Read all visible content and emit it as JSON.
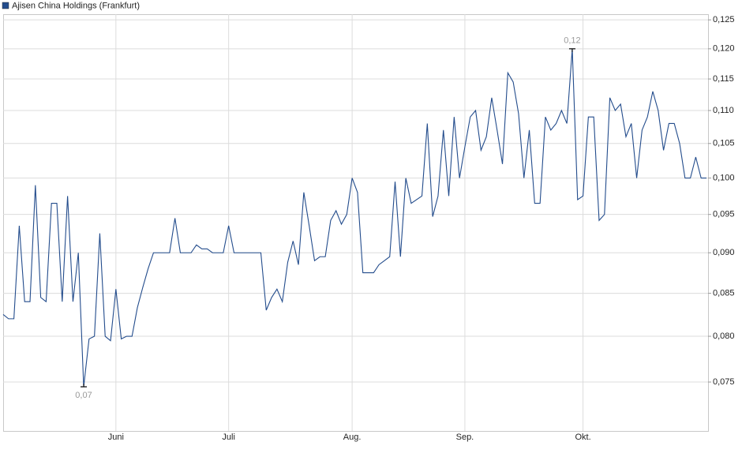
{
  "chart_data": {
    "type": "line",
    "log_scale": true,
    "grid": true,
    "categories": [
      null,
      null,
      null,
      null,
      null,
      null,
      null,
      null,
      null,
      null,
      null,
      null,
      null,
      null,
      null,
      null,
      null,
      null,
      null,
      null,
      null,
      "Juni",
      null,
      null,
      null,
      null,
      null,
      null,
      null,
      null,
      null,
      null,
      null,
      null,
      null,
      null,
      null,
      null,
      null,
      null,
      null,
      null,
      "Juli",
      null,
      null,
      null,
      null,
      null,
      null,
      null,
      null,
      null,
      null,
      null,
      null,
      null,
      null,
      null,
      null,
      null,
      null,
      null,
      null,
      null,
      null,
      "Aug.",
      null,
      null,
      null,
      null,
      null,
      null,
      null,
      null,
      null,
      null,
      null,
      null,
      null,
      null,
      null,
      null,
      null,
      null,
      null,
      null,
      "Sep.",
      null,
      null,
      null,
      null,
      null,
      null,
      null,
      null,
      null,
      null,
      null,
      null,
      null,
      null,
      null,
      null,
      null,
      null,
      null,
      null,
      null,
      "Okt.",
      null,
      null,
      null,
      null,
      null,
      null,
      null,
      null,
      null,
      null,
      null,
      null,
      null,
      null,
      null,
      null,
      null,
      null,
      null,
      null,
      null,
      null,
      null
    ],
    "series": [
      {
        "name": "Ajisen China Holdings (Frankfurt)",
        "color": "#234c8c",
        "values": [
          0.0825,
          0.082,
          0.082,
          0.0935,
          0.084,
          0.084,
          0.099,
          0.0845,
          0.084,
          0.0965,
          0.0965,
          0.084,
          0.0975,
          0.084,
          0.09,
          0.0745,
          0.0797,
          0.08,
          0.0925,
          0.08,
          0.0795,
          0.0855,
          0.0797,
          0.08,
          0.08,
          0.0833,
          0.0857,
          0.088,
          0.09,
          0.09,
          0.09,
          0.09,
          0.0945,
          0.09,
          0.09,
          0.09,
          0.091,
          0.0905,
          0.0905,
          0.09,
          0.09,
          0.09,
          0.0935,
          0.09,
          0.09,
          0.09,
          0.09,
          0.09,
          0.09,
          0.083,
          0.0845,
          0.0855,
          0.084,
          0.0888,
          0.0915,
          0.0885,
          0.098,
          0.0935,
          0.089,
          0.0895,
          0.0895,
          0.0942,
          0.0955,
          0.0937,
          0.095,
          0.1,
          0.098,
          0.0875,
          0.0875,
          0.0875,
          0.0885,
          0.089,
          0.0895,
          0.0995,
          0.0895,
          0.1,
          0.0965,
          0.097,
          0.0975,
          0.108,
          0.0947,
          0.0975,
          0.107,
          0.0975,
          0.109,
          0.1,
          0.1045,
          0.109,
          0.11,
          0.104,
          0.106,
          0.112,
          0.107,
          0.102,
          0.116,
          0.1145,
          0.1095,
          0.1,
          0.107,
          0.0965,
          0.0965,
          0.109,
          0.107,
          0.108,
          0.11,
          0.108,
          0.12,
          0.097,
          0.0975,
          0.109,
          0.109,
          0.0942,
          0.095,
          0.112,
          0.11,
          0.111,
          0.106,
          0.108,
          0.1,
          0.107,
          0.109,
          0.113,
          0.11,
          0.104,
          0.108,
          0.108,
          0.105,
          0.1,
          0.1,
          0.103,
          0.1,
          0.1
        ],
        "value_labels": [
          null,
          null,
          null,
          null,
          null,
          null,
          null,
          null,
          null,
          null,
          null,
          null,
          null,
          null,
          null,
          "0,07",
          null,
          null,
          null,
          null,
          null,
          null,
          null,
          null,
          null,
          null,
          null,
          null,
          null,
          null,
          null,
          null,
          null,
          null,
          null,
          null,
          null,
          null,
          null,
          null,
          null,
          null,
          null,
          null,
          null,
          null,
          null,
          null,
          null,
          null,
          null,
          null,
          null,
          null,
          null,
          null,
          null,
          null,
          null,
          null,
          null,
          null,
          null,
          null,
          null,
          null,
          null,
          null,
          null,
          null,
          null,
          null,
          null,
          null,
          null,
          null,
          null,
          null,
          null,
          null,
          null,
          null,
          null,
          null,
          null,
          null,
          null,
          null,
          null,
          null,
          null,
          null,
          null,
          null,
          null,
          null,
          null,
          null,
          null,
          null,
          null,
          null,
          null,
          null,
          null,
          null,
          "0,12",
          null,
          null,
          null,
          null,
          null,
          null,
          null,
          null,
          null,
          null,
          null,
          null,
          null,
          null,
          null,
          null,
          null,
          null,
          null,
          null,
          null,
          null,
          null,
          null,
          null
        ]
      }
    ],
    "ylim": [
      0.07,
      0.126
    ],
    "yticks": [
      {
        "value": 0.075,
        "label": "0,075"
      },
      {
        "value": 0.08,
        "label": "0,080"
      },
      {
        "value": 0.085,
        "label": "0,085"
      },
      {
        "value": 0.09,
        "label": "0,090"
      },
      {
        "value": 0.095,
        "label": "0,095"
      },
      {
        "value": 0.1,
        "label": "0,100"
      },
      {
        "value": 0.105,
        "label": "0,105"
      },
      {
        "value": 0.11,
        "label": "0,110"
      },
      {
        "value": 0.115,
        "label": "0,115"
      },
      {
        "value": 0.12,
        "label": "0,120"
      },
      {
        "value": 0.125,
        "label": "0,125"
      }
    ]
  }
}
